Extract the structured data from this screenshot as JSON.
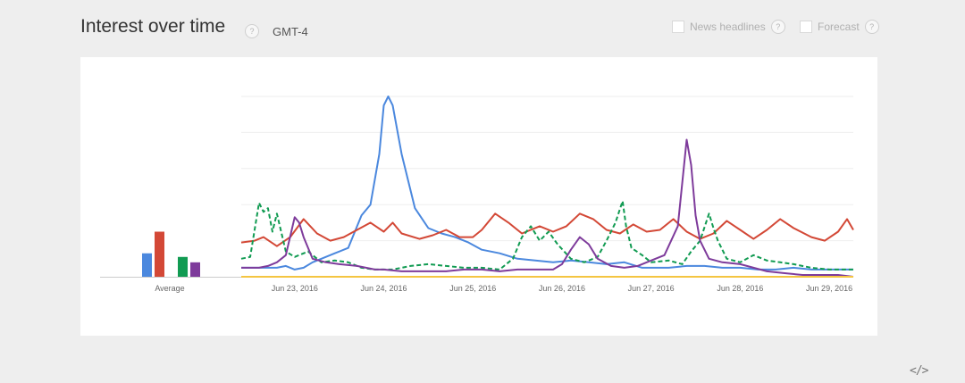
{
  "header": {
    "title": "Interest over time",
    "help_glyph": "?",
    "timezone": "GMT-4"
  },
  "options": {
    "news_label": "News headlines",
    "forecast_label": "Forecast",
    "help_glyph": "?"
  },
  "embed_glyph": "</>",
  "colors": {
    "blue": "#4b88de",
    "red": "#d34836",
    "green": "#119b52",
    "purple": "#7e3b9b",
    "yellow": "#f4c542",
    "grid": "#eeeeee"
  },
  "chart_data": {
    "type": "line",
    "xlabel": "",
    "ylabel": "",
    "x_ticks": [
      "Jun 23, 2016",
      "Jun 24, 2016",
      "Jun 25, 2016",
      "Jun 26, 2016",
      "Jun 27, 2016",
      "Jun 28, 2016",
      "Jun 29, 2016"
    ],
    "x_range": [
      22.4,
      29.27
    ],
    "ylim": [
      0,
      100
    ],
    "grid": true,
    "average": {
      "label": "Average",
      "values": [
        {
          "color": "blue",
          "value": 13
        },
        {
          "color": "red",
          "value": 25
        },
        {
          "color": "green",
          "value": 11
        },
        {
          "color": "purple",
          "value": 8
        }
      ]
    },
    "series": [
      {
        "color": "blue",
        "style": "solid",
        "points": [
          [
            22.4,
            5
          ],
          [
            22.6,
            5
          ],
          [
            22.8,
            5
          ],
          [
            22.9,
            6
          ],
          [
            23.0,
            4
          ],
          [
            23.1,
            5
          ],
          [
            23.2,
            8
          ],
          [
            23.3,
            10
          ],
          [
            23.45,
            13
          ],
          [
            23.6,
            16
          ],
          [
            23.75,
            34
          ],
          [
            23.85,
            40
          ],
          [
            23.95,
            68
          ],
          [
            24.0,
            95
          ],
          [
            24.05,
            100
          ],
          [
            24.1,
            95
          ],
          [
            24.2,
            68
          ],
          [
            24.35,
            38
          ],
          [
            24.5,
            27
          ],
          [
            24.65,
            24
          ],
          [
            24.8,
            22
          ],
          [
            24.95,
            19
          ],
          [
            25.1,
            15
          ],
          [
            25.3,
            13
          ],
          [
            25.5,
            10
          ],
          [
            25.7,
            9
          ],
          [
            25.9,
            8
          ],
          [
            26.1,
            9
          ],
          [
            26.3,
            8
          ],
          [
            26.5,
            7
          ],
          [
            26.7,
            8
          ],
          [
            26.9,
            5
          ],
          [
            27.05,
            5
          ],
          [
            27.2,
            5
          ],
          [
            27.4,
            6
          ],
          [
            27.6,
            6
          ],
          [
            27.8,
            5
          ],
          [
            28.0,
            5
          ],
          [
            28.2,
            4
          ],
          [
            28.4,
            4
          ],
          [
            28.6,
            5
          ],
          [
            28.8,
            4
          ],
          [
            29.0,
            4
          ],
          [
            29.27,
            4
          ]
        ]
      },
      {
        "color": "red",
        "style": "solid",
        "points": [
          [
            22.4,
            19
          ],
          [
            22.55,
            20
          ],
          [
            22.65,
            22
          ],
          [
            22.8,
            17
          ],
          [
            22.95,
            22
          ],
          [
            23.1,
            32
          ],
          [
            23.25,
            24
          ],
          [
            23.4,
            20
          ],
          [
            23.55,
            22
          ],
          [
            23.7,
            26
          ],
          [
            23.85,
            30
          ],
          [
            24.0,
            25
          ],
          [
            24.1,
            30
          ],
          [
            24.2,
            24
          ],
          [
            24.4,
            21
          ],
          [
            24.55,
            23
          ],
          [
            24.7,
            26
          ],
          [
            24.85,
            22
          ],
          [
            25.0,
            22
          ],
          [
            25.1,
            26
          ],
          [
            25.25,
            35
          ],
          [
            25.4,
            30
          ],
          [
            25.55,
            24
          ],
          [
            25.75,
            28
          ],
          [
            25.9,
            25
          ],
          [
            26.05,
            28
          ],
          [
            26.2,
            35
          ],
          [
            26.35,
            32
          ],
          [
            26.5,
            26
          ],
          [
            26.65,
            24
          ],
          [
            26.8,
            29
          ],
          [
            26.95,
            25
          ],
          [
            27.1,
            26
          ],
          [
            27.25,
            32
          ],
          [
            27.4,
            25
          ],
          [
            27.55,
            21
          ],
          [
            27.7,
            24
          ],
          [
            27.85,
            31
          ],
          [
            28.0,
            26
          ],
          [
            28.15,
            21
          ],
          [
            28.3,
            26
          ],
          [
            28.45,
            32
          ],
          [
            28.6,
            27
          ],
          [
            28.8,
            22
          ],
          [
            28.95,
            20
          ],
          [
            29.1,
            25
          ],
          [
            29.2,
            32
          ],
          [
            29.27,
            26
          ]
        ]
      },
      {
        "color": "green",
        "style": "dashed",
        "points": [
          [
            22.4,
            10
          ],
          [
            22.5,
            11
          ],
          [
            22.6,
            41
          ],
          [
            22.65,
            36
          ],
          [
            22.7,
            38
          ],
          [
            22.75,
            25
          ],
          [
            22.8,
            35
          ],
          [
            22.9,
            14
          ],
          [
            23.0,
            11
          ],
          [
            23.15,
            14
          ],
          [
            23.3,
            8
          ],
          [
            23.45,
            9
          ],
          [
            23.6,
            8
          ],
          [
            23.75,
            5
          ],
          [
            23.9,
            4
          ],
          [
            24.1,
            4
          ],
          [
            24.3,
            6
          ],
          [
            24.5,
            7
          ],
          [
            24.7,
            6
          ],
          [
            24.9,
            5
          ],
          [
            25.1,
            5
          ],
          [
            25.3,
            4
          ],
          [
            25.45,
            10
          ],
          [
            25.55,
            22
          ],
          [
            25.65,
            28
          ],
          [
            25.75,
            20
          ],
          [
            25.85,
            25
          ],
          [
            25.95,
            18
          ],
          [
            26.1,
            10
          ],
          [
            26.25,
            8
          ],
          [
            26.4,
            11
          ],
          [
            26.5,
            20
          ],
          [
            26.6,
            30
          ],
          [
            26.68,
            42
          ],
          [
            26.72,
            28
          ],
          [
            26.78,
            16
          ],
          [
            26.9,
            12
          ],
          [
            27.0,
            8
          ],
          [
            27.2,
            9
          ],
          [
            27.35,
            7
          ],
          [
            27.45,
            14
          ],
          [
            27.55,
            20
          ],
          [
            27.65,
            35
          ],
          [
            27.7,
            27
          ],
          [
            27.75,
            20
          ],
          [
            27.85,
            10
          ],
          [
            28.0,
            8
          ],
          [
            28.15,
            12
          ],
          [
            28.3,
            9
          ],
          [
            28.45,
            8
          ],
          [
            28.6,
            7
          ],
          [
            28.8,
            5
          ],
          [
            29.0,
            4
          ],
          [
            29.27,
            4
          ]
        ]
      },
      {
        "color": "purple",
        "style": "solid",
        "points": [
          [
            22.4,
            5
          ],
          [
            22.6,
            5
          ],
          [
            22.7,
            6
          ],
          [
            22.8,
            8
          ],
          [
            22.9,
            12
          ],
          [
            23.0,
            33
          ],
          [
            23.05,
            30
          ],
          [
            23.1,
            22
          ],
          [
            23.2,
            10
          ],
          [
            23.35,
            8
          ],
          [
            23.5,
            7
          ],
          [
            23.7,
            6
          ],
          [
            23.9,
            4
          ],
          [
            24.0,
            4
          ],
          [
            24.2,
            3
          ],
          [
            24.4,
            3
          ],
          [
            24.7,
            3
          ],
          [
            24.9,
            4
          ],
          [
            25.1,
            4
          ],
          [
            25.3,
            3
          ],
          [
            25.5,
            4
          ],
          [
            25.7,
            4
          ],
          [
            25.9,
            4
          ],
          [
            26.0,
            7
          ],
          [
            26.1,
            15
          ],
          [
            26.2,
            22
          ],
          [
            26.3,
            18
          ],
          [
            26.4,
            10
          ],
          [
            26.55,
            6
          ],
          [
            26.7,
            5
          ],
          [
            26.85,
            6
          ],
          [
            27.0,
            9
          ],
          [
            27.15,
            12
          ],
          [
            27.3,
            28
          ],
          [
            27.4,
            76
          ],
          [
            27.45,
            62
          ],
          [
            27.5,
            34
          ],
          [
            27.55,
            20
          ],
          [
            27.65,
            10
          ],
          [
            27.8,
            8
          ],
          [
            28.0,
            7
          ],
          [
            28.15,
            5
          ],
          [
            28.3,
            3
          ],
          [
            28.5,
            2
          ],
          [
            28.7,
            1
          ],
          [
            28.9,
            1
          ],
          [
            29.1,
            1
          ],
          [
            29.27,
            0
          ]
        ]
      },
      {
        "color": "yellow",
        "style": "solid",
        "points": [
          [
            22.4,
            0
          ],
          [
            29.27,
            0
          ]
        ]
      }
    ]
  }
}
